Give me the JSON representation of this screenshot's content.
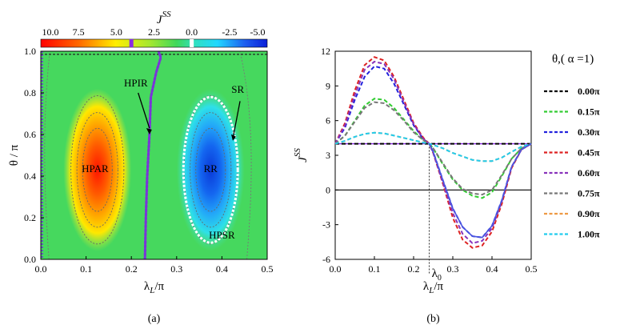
{
  "chart_data": [
    {
      "type": "heatmap",
      "panel_label": "(a)",
      "colorbar": {
        "title": "J",
        "title_sup": "SS",
        "ticks": [
          10.0,
          7.5,
          5.0,
          2.5,
          0.0,
          -2.5,
          -5.0
        ],
        "tick_labels": [
          "10.0",
          "7.5",
          "5.0",
          "2.5",
          "0.0",
          "-2.5",
          "-5.0"
        ],
        "range": [
          -5.0,
          10.0
        ]
      },
      "xlabel_main": "λ",
      "xlabel_sub": "L",
      "xlabel_tail": "/π",
      "ylabel": "θ / π",
      "xlim": [
        0.0,
        0.5
      ],
      "ylim": [
        0.0,
        1.0
      ],
      "xticks": [
        "0.0",
        "0.1",
        "0.2",
        "0.3",
        "0.4",
        "0.5"
      ],
      "yticks": [
        "0.0",
        "0.2",
        "0.4",
        "0.6",
        "0.8",
        "1.0"
      ],
      "peaks": [
        {
          "x": 0.125,
          "y": 0.43,
          "value": 10.0
        },
        {
          "x": 0.375,
          "y": 0.43,
          "value": -5.0
        }
      ],
      "background_value": 4.0,
      "boundary_curve": {
        "color": "#7a35d8",
        "points": [
          [
            0.23,
            0.0
          ],
          [
            0.232,
            0.2
          ],
          [
            0.235,
            0.4
          ],
          [
            0.24,
            0.6
          ],
          [
            0.243,
            0.78
          ],
          [
            0.255,
            0.9
          ],
          [
            0.265,
            0.97
          ],
          [
            0.26,
            1.0
          ]
        ]
      },
      "annotations": [
        {
          "text": "HPAR",
          "x": 0.12,
          "y": 0.42
        },
        {
          "text": "RR",
          "x": 0.375,
          "y": 0.42
        },
        {
          "text": "HPIR",
          "x": 0.21,
          "y": 0.83
        },
        {
          "text": "SR",
          "x": 0.435,
          "y": 0.8
        },
        {
          "text": "HPSR",
          "x": 0.4,
          "y": 0.1
        }
      ]
    },
    {
      "type": "line",
      "panel_label": "(b)",
      "ylabel_main": "J",
      "ylabel_sup": "SS",
      "xlabel_main": "λ",
      "xlabel_sub": "L",
      "xlabel_tail": "/π",
      "xlim": [
        0.0,
        0.5
      ],
      "ylim": [
        -6,
        12
      ],
      "xticks": [
        "0.0",
        "0.1",
        "0.2",
        "0.3",
        "0.4",
        "0.5"
      ],
      "yticks": [
        "-6",
        "-3",
        "0",
        "3",
        "6",
        "9",
        "12"
      ],
      "lambda0": {
        "x": 0.24,
        "label_main": "λ",
        "label_sub": "0"
      },
      "legend_title": "θ,( α =1)",
      "x": [
        0.0,
        0.025,
        0.05,
        0.075,
        0.1,
        0.125,
        0.15,
        0.175,
        0.2,
        0.225,
        0.24,
        0.25,
        0.275,
        0.3,
        0.325,
        0.35,
        0.375,
        0.4,
        0.425,
        0.45,
        0.475,
        0.5
      ],
      "series": [
        {
          "name": "0.00π",
          "color": "#000000",
          "style": "dashed",
          "values": [
            4,
            4,
            4,
            4,
            4,
            4,
            4,
            4,
            4,
            4,
            4,
            4,
            4,
            4,
            4,
            4,
            4,
            4,
            4,
            4,
            4,
            4
          ]
        },
        {
          "name": "0.15π",
          "color": "#33cc33",
          "style": "dashed",
          "values": [
            4.0,
            4.7,
            6.0,
            7.3,
            7.9,
            7.8,
            7.1,
            6.1,
            5.1,
            4.3,
            4.0,
            3.6,
            2.2,
            0.9,
            0.0,
            -0.5,
            -0.7,
            -0.2,
            1.2,
            2.7,
            3.6,
            4.0
          ]
        },
        {
          "name": "0.30π",
          "color": "#2222dd",
          "style": "dashed",
          "values": [
            4.0,
            5.4,
            7.8,
            9.8,
            10.7,
            10.5,
            9.2,
            7.4,
            5.6,
            4.4,
            4.0,
            3.3,
            0.8,
            -1.6,
            -3.2,
            -4.0,
            -4.1,
            -3.1,
            -0.9,
            2.0,
            3.5,
            4.0
          ]
        },
        {
          "name": "0.45π",
          "color": "#dd2222",
          "style": "dashed",
          "values": [
            4.0,
            5.8,
            8.6,
            10.8,
            11.5,
            11.2,
            9.8,
            7.8,
            5.8,
            4.5,
            4.0,
            3.2,
            0.5,
            -2.4,
            -4.3,
            -5.0,
            -4.8,
            -3.6,
            -1.2,
            1.9,
            3.5,
            4.0
          ]
        },
        {
          "name": "0.60π",
          "color": "#8833bb",
          "style": "dashed",
          "values": [
            4.0,
            5.6,
            8.2,
            10.4,
            11.1,
            10.9,
            9.6,
            7.6,
            5.7,
            4.4,
            4.0,
            3.2,
            0.6,
            -2.0,
            -3.8,
            -4.6,
            -4.4,
            -3.3,
            -1.0,
            2.0,
            3.5,
            4.0
          ]
        },
        {
          "name": "0.75π",
          "color": "#777777",
          "style": "dashed",
          "values": [
            4.0,
            4.7,
            5.9,
            7.1,
            7.6,
            7.5,
            6.9,
            6.0,
            5.0,
            4.3,
            4.0,
            3.6,
            2.3,
            1.0,
            0.1,
            -0.3,
            -0.4,
            0.0,
            1.3,
            2.7,
            3.6,
            4.0
          ]
        },
        {
          "name": "0.90π",
          "color": "#ee9944",
          "style": "dashed",
          "values": [
            4.0,
            4.25,
            4.6,
            4.85,
            4.95,
            4.9,
            4.7,
            4.5,
            4.3,
            4.1,
            4.0,
            3.9,
            3.6,
            3.2,
            2.9,
            2.6,
            2.5,
            2.5,
            2.8,
            3.3,
            3.75,
            4.0
          ]
        },
        {
          "name": "1.00π",
          "color": "#22ccee",
          "style": "dashed",
          "values": [
            4.0,
            4.25,
            4.6,
            4.85,
            4.95,
            4.9,
            4.7,
            4.5,
            4.3,
            4.1,
            4.0,
            3.9,
            3.6,
            3.2,
            2.9,
            2.6,
            2.5,
            2.5,
            2.8,
            3.3,
            3.75,
            4.0
          ]
        }
      ]
    }
  ]
}
